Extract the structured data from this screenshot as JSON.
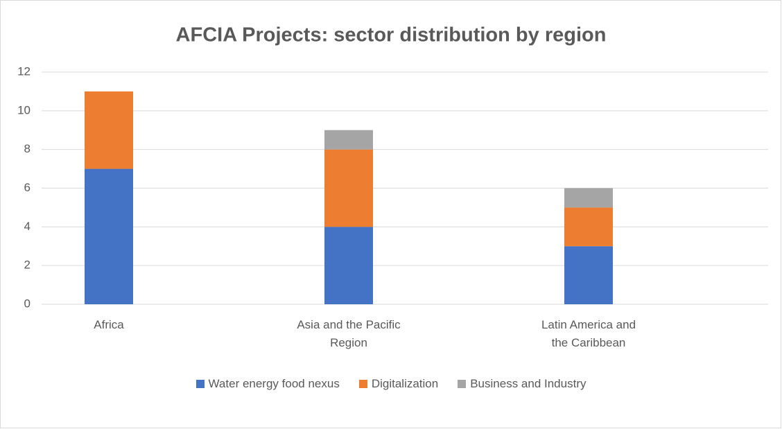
{
  "chart_data": {
    "type": "bar",
    "stacked": true,
    "title": "AFCIA Projects: sector distribution by region",
    "categories": [
      "Africa",
      "Asia and the Pacific Region",
      "Latin America and the Caribbean"
    ],
    "series": [
      {
        "name": "Water energy food nexus",
        "color": "#4472c4",
        "values": [
          7,
          4,
          3
        ]
      },
      {
        "name": "Digitalization",
        "color": "#ed7d31",
        "values": [
          4,
          4,
          2
        ]
      },
      {
        "name": "Business and Industry",
        "color": "#a5a5a5",
        "values": [
          0,
          1,
          1
        ]
      }
    ],
    "ylim": [
      0,
      12
    ],
    "yticks": [
      0,
      2,
      4,
      6,
      8,
      10,
      12
    ],
    "grid": true,
    "legend": "bottom"
  }
}
